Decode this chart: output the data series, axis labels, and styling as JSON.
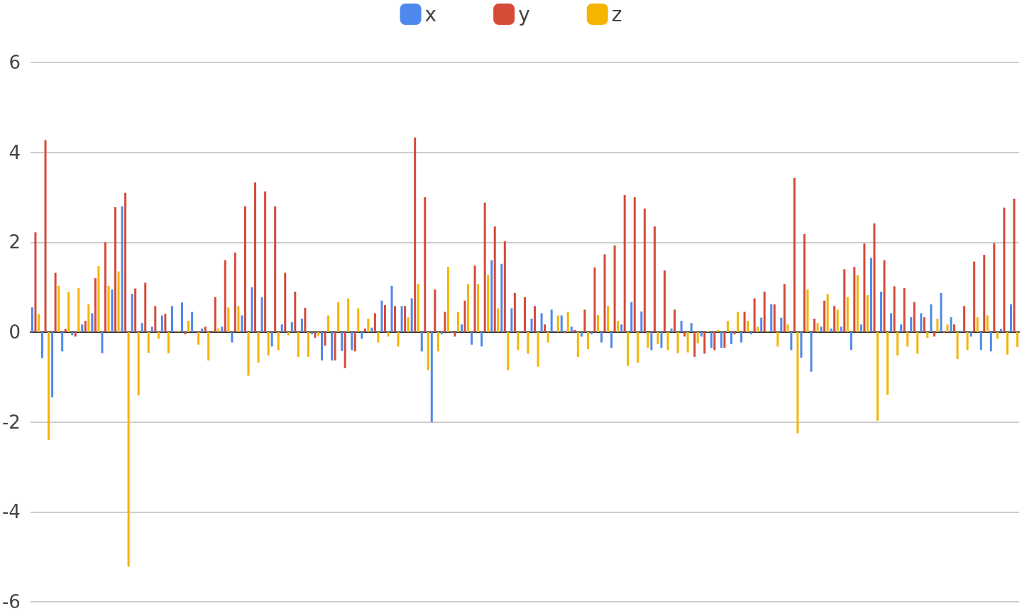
{
  "chart_data": {
    "type": "bar",
    "categories": [
      null,
      null,
      null,
      null,
      null,
      null,
      null,
      null,
      null,
      null,
      null,
      null,
      null,
      null,
      null,
      null,
      null,
      null,
      null,
      null,
      null,
      null,
      null,
      null,
      null,
      null,
      null,
      null,
      null,
      null,
      null,
      null,
      null,
      null,
      null,
      null,
      null,
      null,
      null,
      null,
      null,
      null,
      null,
      null,
      null,
      null,
      null,
      null,
      null,
      null,
      null,
      null,
      null,
      null,
      null,
      null,
      null,
      null,
      null,
      null,
      null,
      null,
      null,
      null,
      null,
      null,
      null,
      null,
      null,
      null,
      null,
      null,
      null,
      null,
      null,
      null,
      null,
      null,
      null,
      null,
      null,
      null,
      null,
      null,
      null,
      null,
      null,
      null,
      null,
      null,
      null,
      null,
      null,
      null,
      null,
      null,
      null,
      null,
      null
    ],
    "series": [
      {
        "name": "x",
        "color": "#4e88ec",
        "values": [
          0.55,
          -0.58,
          -1.45,
          -0.43,
          -0.07,
          0.17,
          0.42,
          -0.47,
          0.95,
          2.8,
          0.85,
          0.2,
          0.12,
          0.37,
          0.58,
          0.66,
          0.45,
          0.08,
          0,
          0.12,
          -0.23,
          0.37,
          1.0,
          0.78,
          -0.32,
          0.17,
          0.22,
          0.3,
          -0.05,
          -0.63,
          -0.63,
          -0.42,
          -0.4,
          -0.15,
          0.1,
          0.7,
          1.03,
          0.58,
          0.75,
          -0.43,
          -2.0,
          -0.05,
          -0.02,
          0.17,
          -0.28,
          -0.32,
          1.6,
          1.52,
          0.53,
          0,
          0.3,
          0.42,
          0.5,
          0.37,
          0.12,
          -0.1,
          -0.05,
          -0.23,
          -0.35,
          0.17,
          0.67,
          0.46,
          -0.4,
          -0.35,
          0.08,
          0.25,
          0.2,
          -0.1,
          -0.35,
          -0.35,
          -0.27,
          -0.23,
          -0.05,
          0.32,
          0.62,
          0.32,
          -0.4,
          -0.57,
          -0.88,
          0.12,
          0.08,
          0.12,
          -0.4,
          0.17,
          1.65,
          0.9,
          0.42,
          0.17,
          0.33,
          0.42,
          0.62,
          0.87,
          0.33,
          0.03,
          -0.1,
          -0.4,
          -0.43,
          0.07,
          0.62
        ]
      },
      {
        "name": "y",
        "color": "#d64a38",
        "values": [
          2.22,
          4.27,
          1.32,
          0.07,
          -0.1,
          0.25,
          1.2,
          2.0,
          2.78,
          3.1,
          0.97,
          1.1,
          0.58,
          0.41,
          0.02,
          -0.05,
          0,
          0.12,
          0.78,
          1.6,
          1.77,
          2.8,
          3.33,
          3.13,
          2.8,
          1.32,
          0.9,
          0.54,
          -0.13,
          -0.3,
          -0.63,
          -0.8,
          -0.43,
          0.08,
          0.42,
          0.6,
          0.58,
          0.58,
          4.33,
          3.0,
          0.95,
          0.45,
          -0.1,
          0.7,
          1.48,
          2.88,
          2.35,
          2.02,
          0.87,
          0.78,
          0.58,
          0.17,
          0,
          -0.02,
          0.05,
          0.5,
          1.44,
          1.73,
          1.93,
          3.05,
          3.0,
          2.75,
          2.35,
          1.37,
          0.5,
          -0.1,
          -0.55,
          -0.48,
          -0.4,
          -0.35,
          -0.05,
          0.45,
          0.75,
          0.9,
          0.62,
          1.07,
          3.43,
          2.18,
          0.3,
          0.7,
          0.58,
          1.4,
          1.45,
          1.97,
          2.42,
          1.6,
          1.02,
          0.98,
          0.67,
          0.33,
          -0.1,
          -0.02,
          0.17,
          0.58,
          1.57,
          1.72,
          1.98,
          2.77,
          2.97
        ]
      },
      {
        "name": "z",
        "color": "#f4b400",
        "values": [
          0.4,
          -2.4,
          1.03,
          0.9,
          0.98,
          0.62,
          1.47,
          1.03,
          1.35,
          -5.22,
          -1.41,
          -0.46,
          -0.15,
          -0.47,
          0.03,
          0.25,
          -0.28,
          -0.63,
          0.08,
          0.55,
          0.58,
          -0.97,
          -0.68,
          -0.52,
          -0.4,
          -0.07,
          -0.55,
          -0.55,
          -0.08,
          0.37,
          0.67,
          0.75,
          0.53,
          0.3,
          -0.23,
          -0.1,
          -0.32,
          0.33,
          1.07,
          -0.85,
          -0.43,
          1.45,
          0.45,
          1.07,
          1.07,
          1.27,
          0.53,
          -0.85,
          -0.4,
          -0.48,
          -0.77,
          -0.23,
          0.37,
          0.45,
          -0.55,
          -0.38,
          0.38,
          0.58,
          0.25,
          -0.75,
          -0.68,
          -0.35,
          -0.27,
          -0.4,
          -0.47,
          -0.45,
          -0.25,
          0.02,
          0.05,
          0.25,
          0.45,
          0.25,
          0.12,
          0.03,
          -0.32,
          0.17,
          -2.25,
          0.95,
          0.2,
          0.85,
          0.5,
          0.78,
          1.27,
          0.82,
          -1.97,
          -1.4,
          -0.52,
          -0.32,
          -0.48,
          -0.13,
          0.3,
          0.17,
          -0.6,
          -0.4,
          0.33,
          0.37,
          -0.15,
          -0.5,
          -0.33
        ]
      }
    ],
    "ylim": [
      -6,
      6
    ],
    "yticks": [
      -6,
      -4,
      -2,
      0,
      2,
      4,
      6
    ],
    "grid": true,
    "legend": "top"
  }
}
